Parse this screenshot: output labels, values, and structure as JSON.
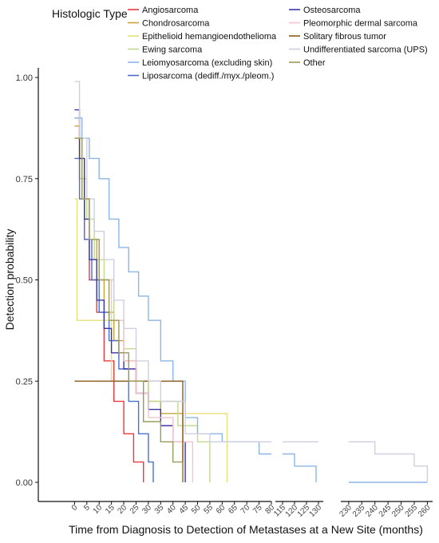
{
  "chart_data": {
    "type": "line",
    "title": "",
    "xlabel": "Time from Diagnosis to Detection of Metastases at a New Site (months)",
    "ylabel": "Detection probability",
    "ylim": [
      0,
      1
    ],
    "y_ticks": [
      "0.00",
      "0.25",
      "0.50",
      "0.75",
      "1.00"
    ],
    "y_tick_values": [
      0,
      0.25,
      0.5,
      0.75,
      1.0
    ],
    "x_segments": [
      {
        "range": [
          -5,
          80
        ],
        "ticks": [
          0,
          5,
          10,
          15,
          20,
          25,
          30,
          35,
          40,
          45,
          50,
          55,
          60,
          65,
          70,
          75,
          80
        ]
      },
      {
        "range": [
          112,
          132
        ],
        "ticks": [
          115,
          120,
          125,
          130
        ]
      },
      {
        "range": [
          227,
          262
        ],
        "ticks": [
          230,
          235,
          240,
          245,
          250,
          255,
          260
        ]
      }
    ],
    "grid": false,
    "legend": {
      "title": "Histologic Type",
      "placement": "top"
    },
    "series": [
      {
        "name": "Angiosarcoma",
        "color": "#e8393c",
        "points": [
          [
            0,
            0.9
          ],
          [
            2,
            0.75
          ],
          [
            4,
            0.6
          ],
          [
            6,
            0.5
          ],
          [
            9,
            0.42
          ],
          [
            12,
            0.3
          ],
          [
            16,
            0.2
          ],
          [
            20,
            0.12
          ],
          [
            24,
            0.05
          ],
          [
            28,
            0
          ]
        ]
      },
      {
        "name": "Chondrosarcoma",
        "color": "#c7a43a",
        "points": [
          [
            0,
            0.88
          ],
          [
            2,
            0.8
          ],
          [
            4,
            0.7
          ],
          [
            6,
            0.6
          ],
          [
            9,
            0.5
          ],
          [
            12,
            0.42
          ],
          [
            16,
            0.35
          ],
          [
            20,
            0.3
          ],
          [
            25,
            0.25
          ],
          [
            30,
            0.2
          ],
          [
            35,
            0.17
          ],
          [
            44,
            0
          ]
        ]
      },
      {
        "name": "Epithelioid hemangioendothelioma",
        "color": "#e6e07a",
        "points": [
          [
            0,
            0.7
          ],
          [
            1,
            0.4
          ],
          [
            10,
            0.4
          ],
          [
            15,
            0.25
          ],
          [
            25,
            0.25
          ],
          [
            30,
            0.2
          ],
          [
            45,
            0.17
          ],
          [
            62,
            0
          ]
        ]
      },
      {
        "name": "Ewing sarcoma",
        "color": "#c3d98f",
        "points": [
          [
            0,
            0.85
          ],
          [
            2,
            0.75
          ],
          [
            5,
            0.65
          ],
          [
            8,
            0.55
          ],
          [
            12,
            0.5
          ],
          [
            16,
            0.4
          ],
          [
            20,
            0.33
          ],
          [
            25,
            0.25
          ],
          [
            30,
            0.2
          ],
          [
            42,
            0.14
          ],
          [
            50,
            0.1
          ],
          [
            55,
            0
          ]
        ]
      },
      {
        "name": "Leiomyosarcoma (excluding skin)",
        "color": "#8bb6e6",
        "points": [
          [
            0,
            0.9
          ],
          [
            3,
            0.85
          ],
          [
            6,
            0.8
          ],
          [
            10,
            0.75
          ],
          [
            14,
            0.65
          ],
          [
            18,
            0.58
          ],
          [
            22,
            0.52
          ],
          [
            26,
            0.46
          ],
          [
            30,
            0.4
          ],
          [
            35,
            0.3
          ],
          [
            40,
            0.25
          ],
          [
            45,
            0.16
          ],
          [
            50,
            0.12
          ],
          [
            60,
            0.1
          ],
          [
            70,
            0.1
          ],
          [
            75,
            0.07
          ],
          [
            80,
            0.07
          ],
          [
            115,
            0.07
          ],
          [
            120,
            0.04
          ],
          [
            125,
            0.04
          ],
          [
            129,
            0
          ],
          [
            230,
            0
          ],
          [
            260,
            0
          ]
        ]
      },
      {
        "name": "Liposarcoma (dediff./myx./pleom.)",
        "color": "#4b6fd1",
        "points": [
          [
            0,
            0.8
          ],
          [
            2,
            0.7
          ],
          [
            4,
            0.6
          ],
          [
            7,
            0.5
          ],
          [
            10,
            0.42
          ],
          [
            14,
            0.35
          ],
          [
            18,
            0.28
          ],
          [
            22,
            0.2
          ],
          [
            26,
            0.12
          ],
          [
            30,
            0.05
          ],
          [
            32,
            0
          ]
        ]
      },
      {
        "name": "Osteosarcoma",
        "color": "#3a37a8",
        "points": [
          [
            0,
            0.92
          ],
          [
            2,
            0.8
          ],
          [
            4,
            0.65
          ],
          [
            6,
            0.55
          ],
          [
            9,
            0.45
          ],
          [
            12,
            0.38
          ],
          [
            15,
            0.32
          ],
          [
            20,
            0.28
          ],
          [
            25,
            0.22
          ],
          [
            30,
            0.18
          ],
          [
            35,
            0.14
          ],
          [
            40,
            0.1
          ],
          [
            45,
            0
          ]
        ]
      },
      {
        "name": "Pleomorphic dermal sarcoma",
        "color": "#f3c3cf",
        "points": [
          [
            0,
            0.85
          ],
          [
            3,
            0.7
          ],
          [
            6,
            0.6
          ],
          [
            10,
            0.5
          ],
          [
            15,
            0.4
          ],
          [
            20,
            0.3
          ],
          [
            25,
            0.22
          ],
          [
            30,
            0.16
          ],
          [
            40,
            0.1
          ],
          [
            48,
            0
          ]
        ]
      },
      {
        "name": "Solitary fibrous tumor",
        "color": "#8b5a1e",
        "points": [
          [
            0,
            0.25
          ],
          [
            44,
            0.25
          ],
          [
            44,
            0
          ]
        ]
      },
      {
        "name": "Undifferentiated sarcoma (UPS)",
        "color": "#cfcfe3",
        "points": [
          [
            0,
            0.99
          ],
          [
            2,
            0.85
          ],
          [
            5,
            0.7
          ],
          [
            8,
            0.62
          ],
          [
            12,
            0.55
          ],
          [
            16,
            0.45
          ],
          [
            20,
            0.38
          ],
          [
            25,
            0.3
          ],
          [
            30,
            0.25
          ],
          [
            35,
            0.2
          ],
          [
            45,
            0.12
          ],
          [
            55,
            0.1
          ],
          [
            70,
            0.1
          ],
          [
            80,
            0.1
          ],
          [
            115,
            0.1
          ],
          [
            130,
            0.1
          ],
          [
            230,
            0.1
          ],
          [
            240,
            0.07
          ],
          [
            250,
            0.07
          ],
          [
            255,
            0.04
          ],
          [
            260,
            0
          ]
        ]
      },
      {
        "name": "Other",
        "color": "#9a9a5a",
        "points": [
          [
            0,
            0.85
          ],
          [
            3,
            0.7
          ],
          [
            6,
            0.6
          ],
          [
            10,
            0.5
          ],
          [
            14,
            0.4
          ],
          [
            18,
            0.32
          ],
          [
            22,
            0.25
          ],
          [
            28,
            0.15
          ],
          [
            35,
            0.1
          ],
          [
            40,
            0.05
          ],
          [
            44,
            0
          ]
        ]
      }
    ]
  }
}
